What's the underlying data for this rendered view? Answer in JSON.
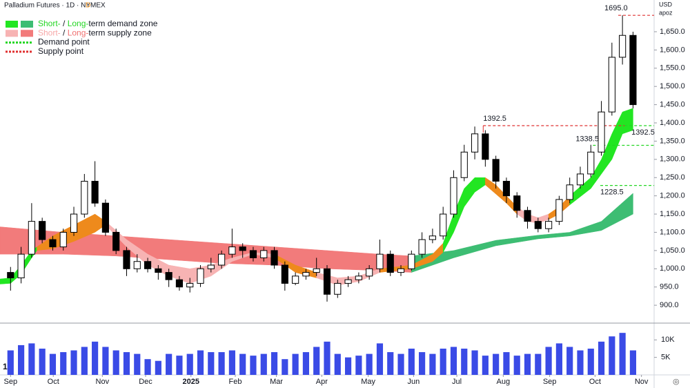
{
  "chart_data": {
    "type": "candlestick",
    "title": "Palladium Futures · 1D · NYMEX",
    "badge": "D",
    "currency": "USD",
    "scale_mode": "apoz",
    "legend": [
      {
        "parts": [
          "Short-",
          " / ",
          "Long-",
          "term demand zone"
        ],
        "part_colors": [
          "#22d622",
          "#131722",
          "#22d622",
          "#131722"
        ],
        "swatches": [
          "#22e622",
          "#3dbd73"
        ],
        "style": "box"
      },
      {
        "parts": [
          "Short-",
          " / ",
          "Long-",
          "term supply zone"
        ],
        "part_colors": [
          "#f7a8a8",
          "#131722",
          "#f07070",
          "#131722"
        ],
        "swatches": [
          "#f7b3b3",
          "#f27b7b"
        ],
        "style": "box"
      },
      {
        "parts": [
          "Demand point"
        ],
        "part_colors": [
          "#131722"
        ],
        "swatches": [
          "#22d622"
        ],
        "style": "dash"
      },
      {
        "parts": [
          "Supply point"
        ],
        "part_colors": [
          "#131722"
        ],
        "swatches": [
          "#e03030"
        ],
        "style": "dash"
      }
    ],
    "xlim": [
      -1,
      61
    ],
    "xticks": [
      {
        "value": 0,
        "label": "Sep"
      },
      {
        "value": 4.05,
        "label": "Oct"
      },
      {
        "value": 8.7,
        "label": "Nov"
      },
      {
        "value": 12.8,
        "label": "Dec"
      },
      {
        "value": 17.1,
        "label": "2025"
      },
      {
        "value": 21.3,
        "label": "Feb"
      },
      {
        "value": 25.2,
        "label": "Mar"
      },
      {
        "value": 29.5,
        "label": "Apr"
      },
      {
        "value": 33.9,
        "label": "May"
      },
      {
        "value": 38.2,
        "label": "Jun"
      },
      {
        "value": 42.3,
        "label": "Jul"
      },
      {
        "value": 46.7,
        "label": "Aug"
      },
      {
        "value": 51.1,
        "label": "Sep"
      },
      {
        "value": 55.4,
        "label": "Oct"
      },
      {
        "value": 59.8,
        "label": "Nov"
      }
    ],
    "ylim": [
      851,
      1737
    ],
    "yticks": [
      {
        "value": 900,
        "label": "900.0"
      },
      {
        "value": 950,
        "label": "950.0"
      },
      {
        "value": 1000,
        "label": "1,000.0"
      },
      {
        "value": 1050,
        "label": "1,050.0"
      },
      {
        "value": 1100,
        "label": "1,100.0"
      },
      {
        "value": 1150,
        "label": "1,150.0"
      },
      {
        "value": 1200,
        "label": "1,200.0"
      },
      {
        "value": 1250,
        "label": "1,250.0"
      },
      {
        "value": 1300,
        "label": "1,300.0"
      },
      {
        "value": 1350,
        "label": "1,350.0"
      },
      {
        "value": 1400,
        "label": "1,400.0"
      },
      {
        "value": 1450,
        "label": "1,450.0"
      },
      {
        "value": 1500,
        "label": "1,500.0"
      },
      {
        "value": 1550,
        "label": "1,550.0"
      },
      {
        "value": 1600,
        "label": "1,600.0"
      },
      {
        "value": 1650,
        "label": "1,650.0"
      }
    ],
    "x": [
      0,
      1,
      2,
      3,
      4,
      5,
      6,
      7,
      8,
      9,
      10,
      11,
      12,
      13,
      14,
      15,
      16,
      17,
      18,
      19,
      20,
      21,
      22,
      23,
      24,
      25,
      26,
      27,
      28,
      29,
      30,
      31,
      32,
      33,
      34,
      35,
      36,
      37,
      38,
      39,
      40,
      41,
      42,
      43,
      44,
      45,
      46,
      47,
      48,
      49,
      50,
      51,
      52,
      53,
      54,
      55,
      56,
      57,
      58,
      59
    ],
    "open": [
      990,
      975,
      1040,
      1130,
      1080,
      1060,
      1100,
      1150,
      1240,
      1180,
      1100,
      1050,
      1000,
      1020,
      1000,
      990,
      970,
      950,
      960,
      1000,
      1010,
      1040,
      1060,
      1050,
      1030,
      1050,
      1010,
      960,
      980,
      990,
      1000,
      930,
      960,
      970,
      980,
      1000,
      1040,
      990,
      1000,
      1040,
      1080,
      1090,
      1150,
      1250,
      1320,
      1370,
      1300,
      1240,
      1200,
      1160,
      1130,
      1110,
      1130,
      1190,
      1230,
      1260,
      1320,
      1430,
      1580,
      1640
    ],
    "high": [
      1005,
      1060,
      1180,
      1140,
      1090,
      1110,
      1170,
      1260,
      1295,
      1190,
      1110,
      1060,
      1040,
      1030,
      1010,
      1000,
      980,
      975,
      1010,
      1030,
      1050,
      1110,
      1070,
      1060,
      1060,
      1060,
      1020,
      990,
      1000,
      1030,
      1010,
      970,
      980,
      990,
      1010,
      1080,
      1050,
      1010,
      1050,
      1100,
      1110,
      1170,
      1270,
      1340,
      1390,
      1380,
      1310,
      1250,
      1210,
      1170,
      1140,
      1140,
      1200,
      1250,
      1280,
      1340,
      1460,
      1620,
      1695,
      1650
    ],
    "low": [
      940,
      960,
      1030,
      1070,
      1050,
      1050,
      1090,
      1140,
      1170,
      1090,
      1040,
      980,
      990,
      990,
      970,
      950,
      940,
      935,
      950,
      990,
      1000,
      1030,
      1030,
      1020,
      1020,
      1000,
      940,
      955,
      970,
      980,
      910,
      920,
      950,
      960,
      970,
      990,
      980,
      980,
      995,
      1030,
      1070,
      1080,
      1140,
      1240,
      1300,
      1280,
      1220,
      1180,
      1140,
      1110,
      1100,
      1100,
      1120,
      1180,
      1220,
      1250,
      1310,
      1420,
      1560,
      1440
    ],
    "close": [
      975,
      1040,
      1130,
      1080,
      1060,
      1100,
      1150,
      1240,
      1180,
      1100,
      1050,
      1000,
      1020,
      1000,
      990,
      970,
      950,
      960,
      1000,
      1010,
      1040,
      1060,
      1050,
      1030,
      1050,
      1010,
      960,
      980,
      990,
      1000,
      930,
      960,
      970,
      980,
      1000,
      1040,
      990,
      1000,
      1040,
      1080,
      1090,
      1150,
      1250,
      1320,
      1370,
      1300,
      1240,
      1200,
      1160,
      1130,
      1110,
      1130,
      1190,
      1230,
      1260,
      1320,
      1430,
      1580,
      1640,
      1450
    ],
    "up_color": "#ffffff",
    "down_color": "#000000",
    "volume": {
      "color": "#3a4be6",
      "ylim": [
        0,
        14400
      ],
      "yticks": [
        {
          "value": 10000,
          "label": "10K"
        },
        {
          "value": 5000,
          "label": "5K"
        }
      ],
      "values": [
        7000,
        8500,
        9000,
        7500,
        6000,
        6500,
        7000,
        8000,
        9500,
        8000,
        7000,
        6500,
        6000,
        4500,
        4000,
        6000,
        5500,
        6000,
        7000,
        6500,
        6500,
        7000,
        6000,
        5500,
        6000,
        6500,
        4500,
        6000,
        6500,
        8000,
        9500,
        6000,
        5000,
        5500,
        6000,
        9000,
        6500,
        6000,
        7500,
        6500,
        6000,
        7500,
        8000,
        7500,
        7000,
        5500,
        6000,
        6500,
        5500,
        6000,
        6000,
        8000,
        9000,
        8000,
        7000,
        7500,
        9500,
        11000,
        12000,
        7000
      ]
    },
    "zones": [
      {
        "color": "#f27b7b",
        "x": [
          -1,
          5,
          10,
          15,
          20,
          25,
          30,
          35,
          38
        ],
        "upper": [
          1115,
          1100,
          1090,
          1080,
          1070,
          1060,
          1050,
          1040,
          1035
        ],
        "lower": [
          1040,
          1040,
          1035,
          1025,
          1015,
          1010,
          1000,
          995,
          990
        ]
      },
      {
        "color": "#3dbd73",
        "x": [
          38,
          42,
          46,
          50,
          53,
          56,
          59
        ],
        "upper": [
          1035,
          1050,
          1078,
          1092,
          1100,
          1130,
          1207
        ],
        "lower": [
          990,
          1030,
          1063,
          1082,
          1090,
          1105,
          1150
        ]
      },
      {
        "color": "#22e622",
        "x": [
          -1,
          0,
          1,
          2,
          2.5
        ],
        "upper": [
          972,
          975,
          1010,
          1050,
          1060
        ],
        "lower": [
          958,
          960,
          985,
          1030,
          1050
        ]
      },
      {
        "color": "#ee8a1c",
        "x": [
          2.5,
          4,
          6,
          8,
          9
        ],
        "upper": [
          1060,
          1090,
          1120,
          1150,
          1130
        ],
        "lower": [
          1050,
          1055,
          1075,
          1100,
          1120
        ]
      },
      {
        "color": "#f7b3b3",
        "x": [
          9,
          11,
          13,
          15,
          17,
          19,
          21,
          23,
          25
        ],
        "upper": [
          1130,
          1080,
          1040,
          1010,
          1000,
          1010,
          1030,
          1045,
          1040
        ],
        "lower": [
          1120,
          1060,
          1010,
          980,
          960,
          980,
          1020,
          1040,
          1030
        ]
      },
      {
        "color": "#ee8a1c",
        "x": [
          25,
          27,
          29
        ],
        "upper": [
          1040,
          1010,
          990
        ],
        "lower": [
          1030,
          990,
          975
        ]
      },
      {
        "color": "#f7b3b3",
        "x": [
          29,
          31,
          33,
          35
        ],
        "upper": [
          990,
          975,
          980,
          1000
        ],
        "lower": [
          975,
          955,
          965,
          990
        ]
      },
      {
        "color": "#ee8a1c",
        "x": [
          35,
          38,
          40,
          41
        ],
        "upper": [
          1000,
          1010,
          1040,
          1070
        ],
        "lower": [
          990,
          1000,
          1020,
          1045
        ]
      },
      {
        "color": "#22e622",
        "x": [
          41,
          42,
          43,
          44,
          45
        ],
        "upper": [
          1070,
          1150,
          1220,
          1250,
          1250
        ],
        "lower": [
          1045,
          1100,
          1170,
          1210,
          1230
        ]
      },
      {
        "color": "#ee8a1c",
        "x": [
          45,
          46,
          47,
          48
        ],
        "upper": [
          1250,
          1230,
          1200,
          1170
        ],
        "lower": [
          1230,
          1205,
          1180,
          1150
        ]
      },
      {
        "color": "#f7b3b3",
        "x": [
          48,
          49,
          50,
          51
        ],
        "upper": [
          1170,
          1150,
          1140,
          1150
        ],
        "lower": [
          1150,
          1130,
          1125,
          1135
        ]
      },
      {
        "color": "#ee8a1c",
        "x": [
          51,
          52,
          53
        ],
        "upper": [
          1150,
          1170,
          1200
        ],
        "lower": [
          1135,
          1150,
          1175
        ]
      },
      {
        "color": "#22e622",
        "x": [
          53,
          55,
          56,
          57,
          58,
          59
        ],
        "upper": [
          1200,
          1250,
          1300,
          1370,
          1430,
          1440
        ],
        "lower": [
          1175,
          1220,
          1260,
          1300,
          1370,
          1380
        ]
      }
    ],
    "points": [
      {
        "value": 1695,
        "label": "1695.0",
        "from": 57.6,
        "color": "#e03030"
      },
      {
        "value": 1392.5,
        "from": 44.8,
        "to": 58.2,
        "color": "#e03030"
      },
      {
        "value": 1392.5,
        "from": 58.2,
        "color": "#22d622"
      },
      {
        "value": 1338.5,
        "from": 55.2,
        "color": "#22d622"
      },
      {
        "value": 1228.5,
        "from": 55.9,
        "color": "#22d622"
      }
    ]
  }
}
